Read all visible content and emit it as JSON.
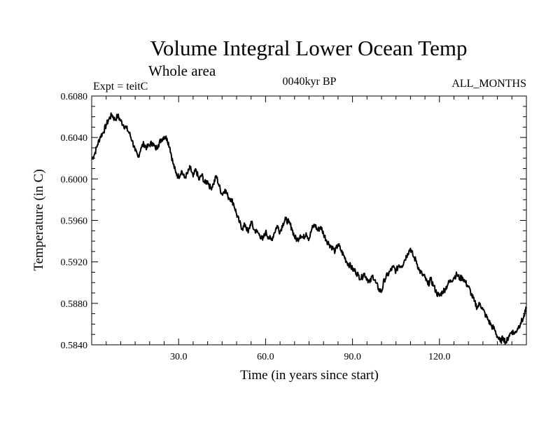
{
  "chart_data": {
    "type": "line",
    "title": "Volume Integral Lower Ocean Temp",
    "subtitle": "Whole area",
    "experiment_label": "Expt = teitC",
    "period_label": "0040kyr BP",
    "months_label": "ALL_MONTHS",
    "xlabel": "Time (in years since start)",
    "ylabel": "Temperature (in C)",
    "xlim": [
      0,
      150
    ],
    "ylim": [
      0.584,
      0.608
    ],
    "xticks": [
      30,
      60,
      90,
      120
    ],
    "xtick_labels": [
      "30.0",
      "60.0",
      "90.0",
      "120.0"
    ],
    "yticks": [
      0.584,
      0.588,
      0.592,
      0.596,
      0.6,
      0.604,
      0.608
    ],
    "ytick_labels": [
      "0.5840",
      "0.5880",
      "0.5920",
      "0.5960",
      "0.6000",
      "0.6040",
      "0.6080"
    ],
    "grid": false,
    "series": [
      {
        "name": "Volume Integral Lower Ocean Temp",
        "color": "#000000",
        "x": [
          0,
          1,
          2,
          3,
          4,
          5,
          6,
          7,
          8,
          9,
          10,
          11,
          12,
          13,
          14,
          15,
          16,
          17,
          18,
          19,
          20,
          21,
          22,
          23,
          24,
          25,
          26,
          27,
          28,
          29,
          30,
          31,
          32,
          33,
          34,
          35,
          36,
          37,
          38,
          39,
          40,
          41,
          42,
          43,
          44,
          45,
          46,
          47,
          48,
          49,
          50,
          51,
          52,
          53,
          54,
          55,
          56,
          57,
          58,
          59,
          60,
          61,
          62,
          63,
          64,
          65,
          66,
          67,
          68,
          69,
          70,
          71,
          72,
          73,
          74,
          75,
          76,
          77,
          78,
          79,
          80,
          81,
          82,
          83,
          84,
          85,
          86,
          87,
          88,
          89,
          90,
          91,
          92,
          93,
          94,
          95,
          96,
          97,
          98,
          99,
          100,
          101,
          102,
          103,
          104,
          105,
          106,
          107,
          108,
          109,
          110,
          111,
          112,
          113,
          114,
          115,
          116,
          117,
          118,
          119,
          120,
          121,
          122,
          123,
          124,
          125,
          126,
          127,
          128,
          129,
          130,
          131,
          132,
          133,
          134,
          135,
          136,
          137,
          138,
          139,
          140,
          141,
          142,
          143,
          144,
          145,
          146,
          147,
          148,
          149,
          150
        ],
        "y": [
          0.6019,
          0.6024,
          0.6033,
          0.6041,
          0.6045,
          0.6052,
          0.6058,
          0.6062,
          0.6057,
          0.6061,
          0.6056,
          0.6052,
          0.6049,
          0.6044,
          0.6037,
          0.6027,
          0.6021,
          0.603,
          0.6034,
          0.603,
          0.6033,
          0.6035,
          0.6029,
          0.6033,
          0.6038,
          0.6041,
          0.6039,
          0.603,
          0.6016,
          0.6006,
          0.6002,
          0.6008,
          0.6001,
          0.6005,
          0.6011,
          0.6002,
          0.6009,
          0.5999,
          0.6004,
          0.5996,
          0.5998,
          0.5991,
          0.5995,
          0.6003,
          0.5993,
          0.5985,
          0.599,
          0.5983,
          0.5981,
          0.5976,
          0.5966,
          0.5958,
          0.5952,
          0.5956,
          0.5948,
          0.5959,
          0.5951,
          0.5949,
          0.5946,
          0.5941,
          0.5949,
          0.5944,
          0.5941,
          0.5948,
          0.5955,
          0.5949,
          0.5957,
          0.5961,
          0.5958,
          0.5953,
          0.5944,
          0.5941,
          0.5946,
          0.5943,
          0.5948,
          0.5942,
          0.5952,
          0.5956,
          0.595,
          0.5954,
          0.5947,
          0.5941,
          0.5937,
          0.5934,
          0.593,
          0.5937,
          0.5931,
          0.5926,
          0.592,
          0.5917,
          0.5913,
          0.5911,
          0.5907,
          0.5904,
          0.5909,
          0.5904,
          0.59,
          0.5907,
          0.59,
          0.5894,
          0.5891,
          0.5903,
          0.5907,
          0.5911,
          0.5915,
          0.5911,
          0.5917,
          0.5916,
          0.5922,
          0.5928,
          0.5933,
          0.5925,
          0.5921,
          0.5912,
          0.5908,
          0.5905,
          0.5898,
          0.5903,
          0.5897,
          0.589,
          0.5887,
          0.5891,
          0.5894,
          0.5899,
          0.5902,
          0.5905,
          0.5908,
          0.5904,
          0.5905,
          0.59,
          0.5896,
          0.5889,
          0.5882,
          0.5876,
          0.588,
          0.5874,
          0.5868,
          0.5863,
          0.5858,
          0.5855,
          0.5848,
          0.5843,
          0.5847,
          0.5842,
          0.5849,
          0.5853,
          0.5851,
          0.5856,
          0.5861,
          0.5866,
          0.5875
        ]
      }
    ]
  }
}
